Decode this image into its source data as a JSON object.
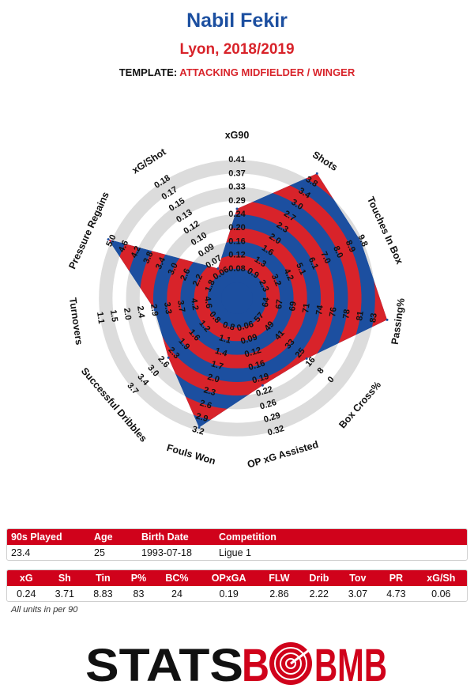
{
  "header": {
    "player": "Nabil Fekir",
    "team_season": "Lyon, 2018/2019",
    "template_label": "TEMPLATE:",
    "template_value": "ATTACKING MIDFIELDER / WINGER"
  },
  "colors": {
    "red": "#d8232a",
    "blue": "#1c4fa0",
    "ring": "#dcdcdc",
    "table_header": "#d0021b"
  },
  "chart_data": {
    "type": "radar",
    "axes": [
      {
        "label": "xG90",
        "ticks": [
          "0.08",
          "0.12",
          "0.16",
          "0.20",
          "0.24",
          "0.29",
          "0.33",
          "0.37",
          "0.41"
        ],
        "value": 0.24,
        "range": [
          0.04,
          0.41
        ]
      },
      {
        "label": "Shots",
        "ticks": [
          "0.9",
          "1.3",
          "1.6",
          "2.0",
          "2.3",
          "2.7",
          "3.0",
          "3.4",
          "3.8"
        ],
        "value": 3.71,
        "range": [
          0.5,
          3.8
        ]
      },
      {
        "label": "Touches In Box",
        "ticks": [
          "2.3",
          "3.2",
          "4.2",
          "5.1",
          "6.1",
          "7.0",
          "8.0",
          "8.9",
          "9.8"
        ],
        "value": 8.83,
        "range": [
          1.3,
          9.8
        ]
      },
      {
        "label": "Passing%",
        "ticks": [
          "64",
          "67",
          "69",
          "71",
          "74",
          "76",
          "78",
          "81",
          "83"
        ],
        "value": 83,
        "range": [
          62,
          83
        ]
      },
      {
        "label": "Box Cross%",
        "ticks": [
          "57",
          "49",
          "41",
          "33",
          "25",
          "16",
          "8",
          "0"
        ],
        "value": 24,
        "range": [
          65,
          -8
        ]
      },
      {
        "label": "OP xG Assisted",
        "ticks": [
          "0.06",
          "0.09",
          "0.12",
          "0.16",
          "0.19",
          "0.22",
          "0.26",
          "0.29",
          "0.32"
        ],
        "value": 0.19,
        "range": [
          0.03,
          0.32
        ]
      },
      {
        "label": "Fouls Won",
        "ticks": [
          "0.8",
          "1.1",
          "1.4",
          "1.7",
          "2.0",
          "2.3",
          "2.6",
          "2.9",
          "3.2"
        ],
        "value": 2.86,
        "range": [
          0.5,
          3.2
        ]
      },
      {
        "label": "Successful Dribbles",
        "ticks": [
          "0.8",
          "1.2",
          "1.6",
          "1.9",
          "2.3",
          "2.6",
          "3.0",
          "3.4",
          "3.7"
        ],
        "value": 2.22,
        "range": [
          0.4,
          3.7
        ]
      },
      {
        "label": "Turnovers",
        "ticks": [
          "4.6",
          "4.2",
          "3.7",
          "3.3",
          "2.9",
          "2.4",
          "2.0",
          "1.5",
          "1.1"
        ],
        "value": 3.07,
        "range": [
          5.0,
          1.1
        ]
      },
      {
        "label": "Pressure Regains",
        "ticks": [
          "1.8",
          "2.2",
          "2.6",
          "3.0",
          "3.4",
          "3.8",
          "4.2",
          "4.6",
          "5.0"
        ],
        "value": 4.73,
        "range": [
          1.4,
          5.0
        ]
      },
      {
        "label": "xG/Shot",
        "ticks": [
          "0.06",
          "0.07",
          "0.09",
          "0.10",
          "0.12",
          "0.13",
          "0.15",
          "0.17",
          "0.18"
        ],
        "value": 0.06,
        "range": [
          0.04,
          0.18
        ]
      }
    ]
  },
  "info": {
    "headers": [
      "90s Played",
      "Age",
      "Birth Date",
      "Competition"
    ],
    "values": [
      "23.4",
      "25",
      "1993-07-18",
      "Ligue 1"
    ]
  },
  "stats": {
    "headers": [
      "xG",
      "Sh",
      "Tin",
      "P%",
      "BC%",
      "OPxGA",
      "FLW",
      "Drib",
      "Tov",
      "PR",
      "xG/Sh"
    ],
    "values": [
      "0.24",
      "3.71",
      "8.83",
      "83",
      "24",
      "0.19",
      "2.86",
      "2.22",
      "3.07",
      "4.73",
      "0.06"
    ]
  },
  "footnote": "All units in per 90",
  "logo": {
    "left": "STATS",
    "right": "BMB"
  }
}
